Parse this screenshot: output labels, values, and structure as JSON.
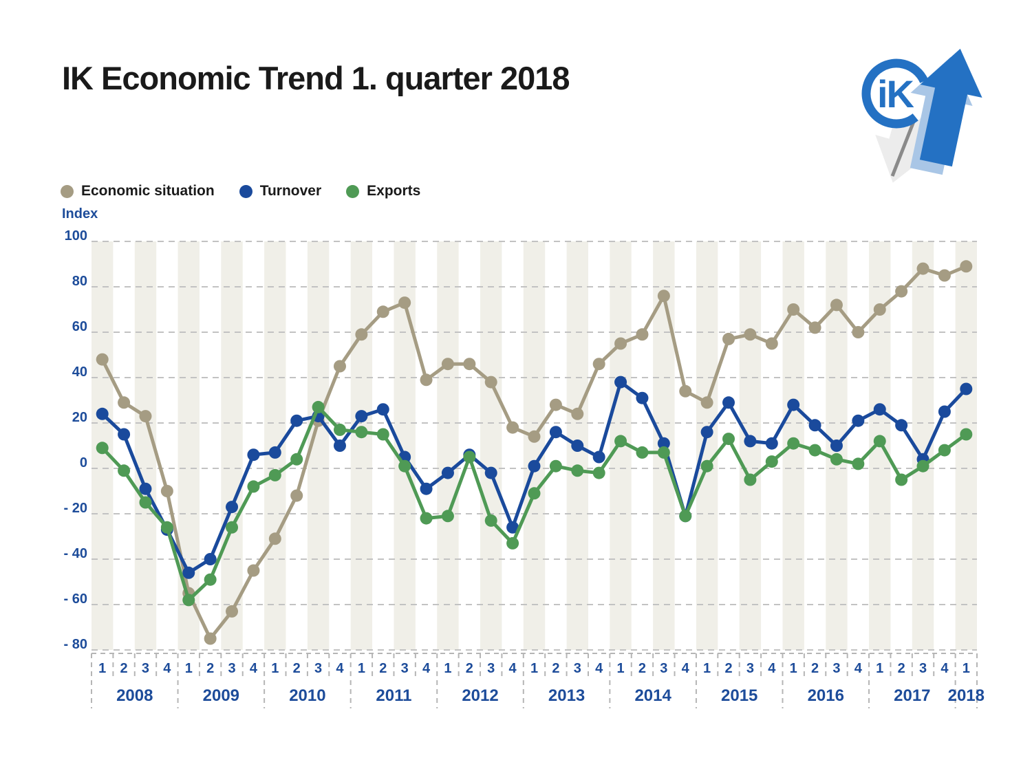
{
  "page": {
    "title": "IK Economic Trend 1. quarter 2018"
  },
  "legend": {
    "items": [
      {
        "label": "Economic situation",
        "color": "#a59c83"
      },
      {
        "label": "Turnover",
        "color": "#1a4a9c"
      },
      {
        "label": "Exports",
        "color": "#4f9a55"
      }
    ]
  },
  "y_axis": {
    "title": "Index",
    "ticks": [
      {
        "label": "100",
        "value": 100
      },
      {
        "label": "80",
        "value": 80
      },
      {
        "label": "60",
        "value": 60
      },
      {
        "label": "40",
        "value": 40
      },
      {
        "label": "20",
        "value": 20
      },
      {
        "label": "0",
        "value": 0
      },
      {
        "label": "- 20",
        "value": -20
      },
      {
        "label": "- 40",
        "value": -40
      },
      {
        "label": "- 60",
        "value": -60
      },
      {
        "label": "- 80",
        "value": -80
      }
    ]
  },
  "x_axis": {
    "years": [
      {
        "label": "2008",
        "quarters": [
          "1",
          "2",
          "3",
          "4"
        ]
      },
      {
        "label": "2009",
        "quarters": [
          "1",
          "2",
          "3",
          "4"
        ]
      },
      {
        "label": "2010",
        "quarters": [
          "1",
          "2",
          "3",
          "4"
        ]
      },
      {
        "label": "2011",
        "quarters": [
          "1",
          "2",
          "3",
          "4"
        ]
      },
      {
        "label": "2012",
        "quarters": [
          "1",
          "2",
          "3",
          "4"
        ]
      },
      {
        "label": "2013",
        "quarters": [
          "1",
          "2",
          "3",
          "4"
        ]
      },
      {
        "label": "2014",
        "quarters": [
          "1",
          "2",
          "3",
          "4"
        ]
      },
      {
        "label": "2015",
        "quarters": [
          "1",
          "2",
          "3",
          "4"
        ]
      },
      {
        "label": "2016",
        "quarters": [
          "1",
          "2",
          "3",
          "4"
        ]
      },
      {
        "label": "2017",
        "quarters": [
          "1",
          "2",
          "3",
          "4"
        ]
      },
      {
        "label": "2018",
        "quarters": [
          "1"
        ]
      }
    ]
  },
  "chart_data": {
    "type": "line",
    "title": "IK Economic Trend 1. quarter 2018",
    "xlabel": "",
    "ylabel": "Index",
    "ylim": [
      -80,
      100
    ],
    "grid": "horizontal-dashed",
    "legend_position": "top-left",
    "categories": [
      "2008 Q1",
      "2008 Q2",
      "2008 Q3",
      "2008 Q4",
      "2009 Q1",
      "2009 Q2",
      "2009 Q3",
      "2009 Q4",
      "2010 Q1",
      "2010 Q2",
      "2010 Q3",
      "2010 Q4",
      "2011 Q1",
      "2011 Q2",
      "2011 Q3",
      "2011 Q4",
      "2012 Q1",
      "2012 Q2",
      "2012 Q3",
      "2012 Q4",
      "2013 Q1",
      "2013 Q2",
      "2013 Q3",
      "2013 Q4",
      "2014 Q1",
      "2014 Q2",
      "2014 Q3",
      "2014 Q4",
      "2015 Q1",
      "2015 Q2",
      "2015 Q3",
      "2015 Q4",
      "2016 Q1",
      "2016 Q2",
      "2016 Q3",
      "2016 Q4",
      "2017 Q1",
      "2017 Q2",
      "2017 Q3",
      "2017 Q4",
      "2018 Q1"
    ],
    "series": [
      {
        "name": "Economic situation",
        "color": "#a59c83",
        "values": [
          48,
          29,
          23,
          -10,
          -55,
          -75,
          -63,
          -45,
          -31,
          -12,
          21,
          45,
          59,
          69,
          73,
          39,
          46,
          46,
          38,
          18,
          14,
          28,
          24,
          46,
          55,
          59,
          76,
          34,
          29,
          57,
          59,
          55,
          70,
          62,
          72,
          60,
          70,
          78,
          88,
          85,
          89
        ]
      },
      {
        "name": "Turnover",
        "color": "#1a4a9c",
        "values": [
          24,
          15,
          -9,
          -27,
          -46,
          -40,
          -17,
          6,
          7,
          21,
          23,
          10,
          23,
          26,
          5,
          -9,
          -2,
          6,
          -2,
          -26,
          1,
          16,
          10,
          5,
          38,
          31,
          11,
          -21,
          16,
          29,
          12,
          11,
          28,
          19,
          10,
          21,
          26,
          19,
          4,
          25,
          35
        ]
      },
      {
        "name": "Exports",
        "color": "#4f9a55",
        "values": [
          9,
          -1,
          -15,
          -26,
          -58,
          -49,
          -26,
          -8,
          -3,
          4,
          27,
          17,
          16,
          15,
          1,
          -22,
          -21,
          5,
          -23,
          -33,
          -11,
          1,
          -1,
          -2,
          12,
          7,
          7,
          -21,
          1,
          13,
          -5,
          3,
          11,
          8,
          4,
          2,
          12,
          -5,
          1,
          8,
          15
        ]
      }
    ]
  },
  "style": {
    "stripe_color": "#f0efe8",
    "grid_color": "#c2c2c2",
    "axis_text_color": "#1d4c9a",
    "title_color": "#1a1a1a",
    "background": "#ffffff",
    "logo_blue": "#2471c3",
    "logo_light_blue": "#a9c6e6",
    "logo_gray": "#ececec",
    "logo_dark_gray": "#8a8a8a"
  }
}
